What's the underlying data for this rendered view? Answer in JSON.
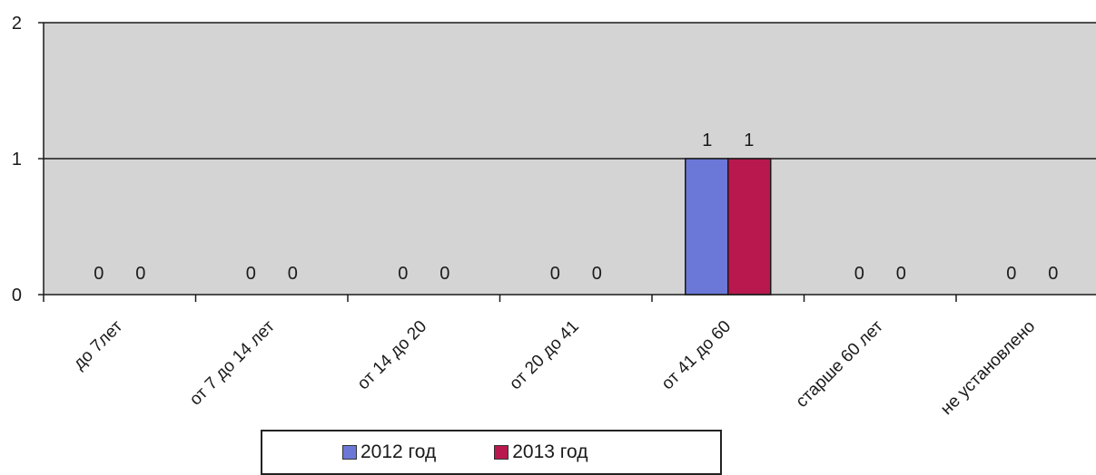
{
  "chart_data": {
    "type": "bar",
    "categories": [
      "до 7лет",
      "от 7 до 14 лет",
      "от 14 до 20",
      "от 20 до 41",
      "от 41 до 60",
      "старше 60 лет",
      "не установлено"
    ],
    "series": [
      {
        "name": "2012 год",
        "values": [
          0,
          0,
          0,
          0,
          1,
          0,
          0
        ],
        "color": "#6b78d8"
      },
      {
        "name": "2013 год",
        "values": [
          0,
          0,
          0,
          0,
          1,
          0,
          0
        ],
        "color": "#b8184e"
      }
    ],
    "ylim": [
      0,
      2
    ],
    "yticks": [
      0,
      1,
      2
    ],
    "grid": true,
    "legend_position": "bottom",
    "plot_background": "#d4d4d4"
  }
}
